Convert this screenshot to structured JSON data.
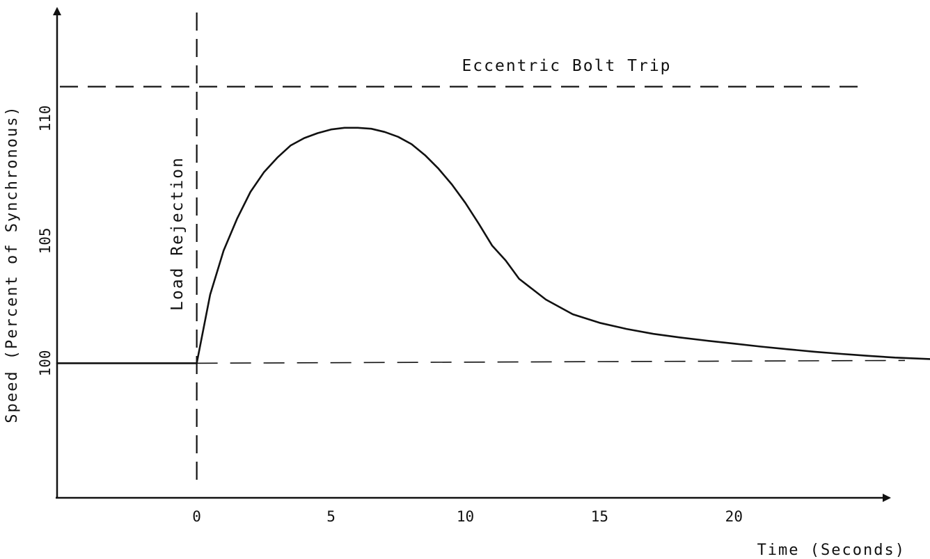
{
  "chart_data": {
    "type": "line",
    "title": "",
    "xlabel": "Time (Seconds)",
    "ylabel": "Speed (Percent of Synchronous)",
    "x_ticks": [
      0,
      5,
      10,
      15,
      20
    ],
    "y_ticks": [
      100,
      105,
      110
    ],
    "xlim": [
      -5.2,
      27.3
    ],
    "ylim": [
      94.5,
      114.5
    ],
    "grid": false,
    "series": [
      {
        "x": [
          -5.2,
          0,
          0.5,
          1,
          1.5,
          2,
          2.5,
          3,
          3.5,
          4,
          4.5,
          5,
          5.5,
          6,
          6.5,
          7,
          7.5,
          8,
          8.5,
          9,
          9.5,
          10,
          10.5,
          11,
          11.5,
          12,
          13,
          14,
          15,
          16,
          17,
          18,
          19,
          20,
          21,
          22,
          23,
          24,
          25,
          26,
          27.3
        ],
        "y": [
          100.0,
          100.0,
          102.8,
          104.6,
          105.9,
          107.0,
          107.8,
          108.4,
          108.9,
          109.2,
          109.4,
          109.55,
          109.62,
          109.62,
          109.58,
          109.45,
          109.25,
          108.95,
          108.5,
          107.95,
          107.3,
          106.55,
          105.7,
          104.8,
          104.2,
          103.45,
          102.6,
          102.0,
          101.65,
          101.4,
          101.2,
          101.05,
          100.92,
          100.8,
          100.68,
          100.57,
          100.47,
          100.38,
          100.3,
          100.23,
          100.17
        ]
      }
    ],
    "reference_lines": [
      {
        "orientation": "horizontal",
        "value": 111.3,
        "label": "Eccentric Bolt Trip"
      },
      {
        "orientation": "vertical",
        "value": 0,
        "label": "Load Rejection"
      },
      {
        "orientation": "horizontal",
        "value": 100,
        "label": ""
      }
    ]
  }
}
